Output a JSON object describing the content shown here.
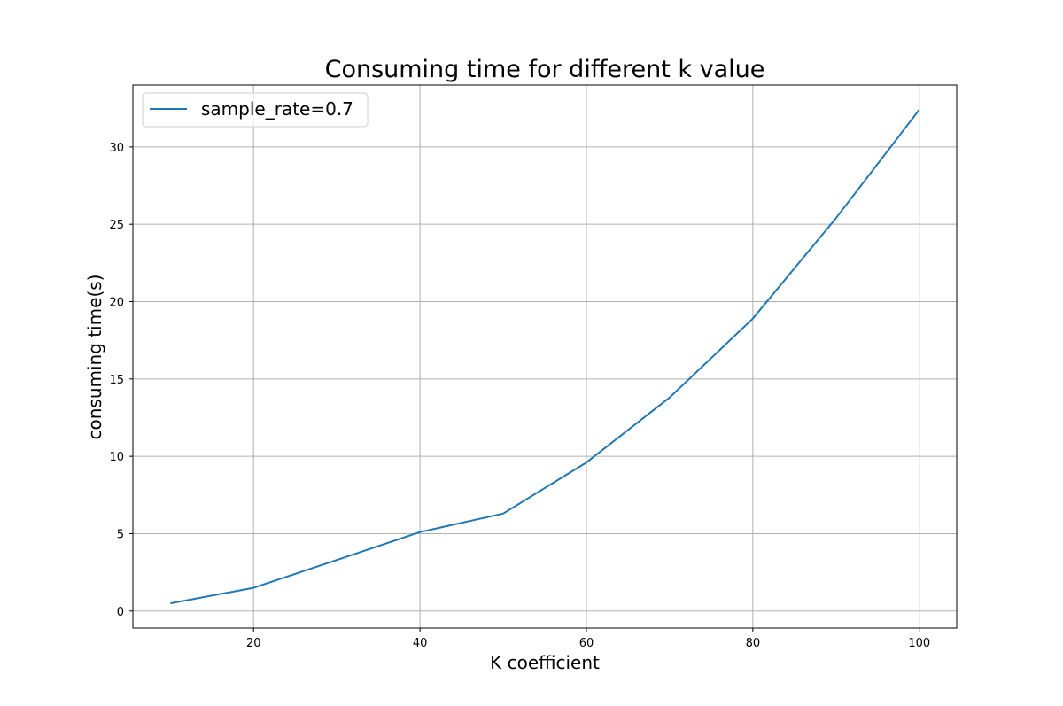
{
  "chart_data": {
    "type": "line",
    "title": "Consuming time for different k value",
    "xlabel": "K coefficient",
    "ylabel": "consuming time(s)",
    "xlim": [
      5.5,
      104.5
    ],
    "ylim": [
      -1.1,
      34.0
    ],
    "xticks": [
      20,
      40,
      60,
      80,
      100
    ],
    "yticks": [
      0,
      5,
      10,
      15,
      20,
      25,
      30
    ],
    "grid": true,
    "legend_position": "upper-left",
    "series": [
      {
        "name": "sample_rate=0.7",
        "color": "#1f77b4",
        "x": [
          10,
          20,
          30,
          40,
          50,
          60,
          70,
          80,
          90,
          100
        ],
        "y": [
          0.5,
          1.5,
          3.3,
          5.1,
          6.3,
          9.6,
          13.8,
          18.9,
          25.4,
          32.4
        ]
      }
    ]
  }
}
